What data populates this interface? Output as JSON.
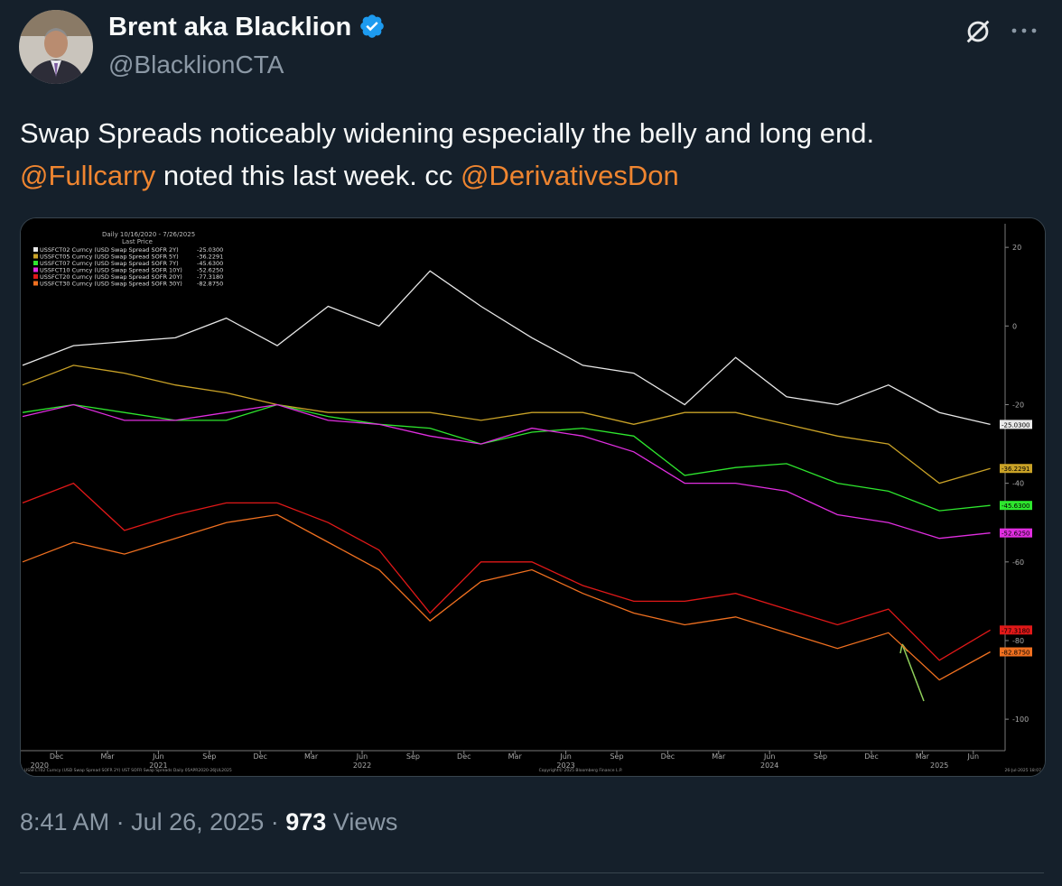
{
  "author": {
    "name": "Brent aka Blacklion",
    "handle": "@BlacklionCTA"
  },
  "tweet": {
    "segments": [
      {
        "text": "Swap Spreads noticeably widening especially the belly and long end.",
        "kind": "plain"
      },
      {
        "text": "@Fullcarry",
        "kind": "mention"
      },
      {
        "text": " noted this last week. cc ",
        "kind": "plain"
      },
      {
        "text": "@DerivativesDon",
        "kind": "mention"
      }
    ]
  },
  "meta": {
    "time": "8:41 AM",
    "separator": "·",
    "date": "Jul 26, 2025",
    "views": "973",
    "views_label": "Views"
  },
  "chart_data": {
    "type": "line",
    "title": "Daily 10/16/2020 - 7/26/2025",
    "subtitle": "Last Price",
    "x": [
      "2020-10",
      "2021-01",
      "2021-04",
      "2021-07",
      "2021-10",
      "2022-01",
      "2022-04",
      "2022-07",
      "2022-10",
      "2023-01",
      "2023-04",
      "2023-07",
      "2023-10",
      "2024-01",
      "2024-04",
      "2024-07",
      "2024-10",
      "2025-01",
      "2025-04",
      "2025-07"
    ],
    "series": [
      {
        "name": "USSFCT02 Curncy (USD Swap Spread SOFR 2Y)",
        "last_label": "-25.0300",
        "color": "#e8e8e8",
        "values": [
          -10,
          -5,
          -4,
          -3,
          2,
          -5,
          5,
          0,
          14,
          5,
          -3,
          -10,
          -12,
          -20,
          -8,
          -18,
          -20,
          -15,
          -22,
          -25.03
        ]
      },
      {
        "name": "USSFCT05 Curncy (USD Swap Spread SOFR 5Y)",
        "last_label": "-36.2291",
        "color": "#c9a227",
        "values": [
          -15,
          -10,
          -12,
          -15,
          -17,
          -20,
          -22,
          -22,
          -22,
          -24,
          -22,
          -22,
          -25,
          -22,
          -22,
          -25,
          -28,
          -30,
          -40,
          -36.2291
        ]
      },
      {
        "name": "USSFCT07 Curncy (USD Swap Spread SOFR 7Y)",
        "last_label": "-45.6300",
        "color": "#2ee62e",
        "values": [
          -22,
          -20,
          -22,
          -24,
          -24,
          -20,
          -23,
          -25,
          -26,
          -30,
          -27,
          -26,
          -28,
          -38,
          -36,
          -35,
          -40,
          -42,
          -47,
          -45.63
        ]
      },
      {
        "name": "USSFCT10 Curncy (USD Swap Spread SOFR 10Y)",
        "last_label": "-52.6250",
        "color": "#e02ee0",
        "values": [
          -23,
          -20,
          -24,
          -24,
          -22,
          -20,
          -24,
          -25,
          -28,
          -30,
          -26,
          -28,
          -32,
          -40,
          -40,
          -42,
          -48,
          -50,
          -54,
          -52.625
        ]
      },
      {
        "name": "USSFCT20 Curncy (USD Swap Spread SOFR 20Y)",
        "last_label": "-77.3180",
        "color": "#e01818",
        "values": [
          -45,
          -40,
          -52,
          -48,
          -45,
          -45,
          -50,
          -57,
          -73,
          -60,
          -60,
          -66,
          -70,
          -70,
          -68,
          -72,
          -76,
          -72,
          -85,
          -77.318
        ]
      },
      {
        "name": "USSFCT30 Curncy (USD Swap Spread SOFR 30Y)",
        "last_label": "-82.8750",
        "color": "#f07020",
        "values": [
          -60,
          -55,
          -58,
          -54,
          -50,
          -48,
          -55,
          -62,
          -75,
          -65,
          -62,
          -68,
          -73,
          -76,
          -74,
          -78,
          -82,
          -78,
          -90,
          -82.875
        ]
      }
    ],
    "ylim": [
      -108,
      26
    ],
    "yticks": [
      20,
      0,
      -20,
      -40,
      -60,
      -80,
      -100
    ],
    "xticks": [
      {
        "value": "2020-12",
        "label": "Dec"
      },
      {
        "value": "2021-03",
        "label": "Mar"
      },
      {
        "value": "2021-06",
        "label": "Jun"
      },
      {
        "value": "2021-09",
        "label": "Sep"
      },
      {
        "value": "2021-12",
        "label": "Dec"
      },
      {
        "value": "2022-03",
        "label": "Mar"
      },
      {
        "value": "2022-06",
        "label": "Jun"
      },
      {
        "value": "2022-09",
        "label": "Sep"
      },
      {
        "value": "2022-12",
        "label": "Dec"
      },
      {
        "value": "2023-03",
        "label": "Mar"
      },
      {
        "value": "2023-06",
        "label": "Jun"
      },
      {
        "value": "2023-09",
        "label": "Sep"
      },
      {
        "value": "2023-12",
        "label": "Dec"
      },
      {
        "value": "2024-03",
        "label": "Mar"
      },
      {
        "value": "2024-06",
        "label": "Jun"
      },
      {
        "value": "2024-09",
        "label": "Sep"
      },
      {
        "value": "2024-12",
        "label": "Dec"
      },
      {
        "value": "2025-03",
        "label": "Mar"
      },
      {
        "value": "2025-06",
        "label": "Jun"
      }
    ],
    "year_ticks": [
      {
        "value": "2020-11",
        "label": "2020"
      },
      {
        "value": "2021-06",
        "label": "2021"
      },
      {
        "value": "2022-06",
        "label": "2022"
      },
      {
        "value": "2023-06",
        "label": "2023"
      },
      {
        "value": "2024-06",
        "label": "2024"
      },
      {
        "value": "2025-04",
        "label": "2025"
      }
    ],
    "footer_left": "USSFCT02 Curncy (USD Swap Spread SOFR 2Y) UST SOFR Swap Spreads Daily 05APR2020-26JUL2025",
    "footer_center": "Copyright© 2025 Bloomberg Finance L.P.",
    "footer_right": "26-Jul-2025 18:07"
  }
}
